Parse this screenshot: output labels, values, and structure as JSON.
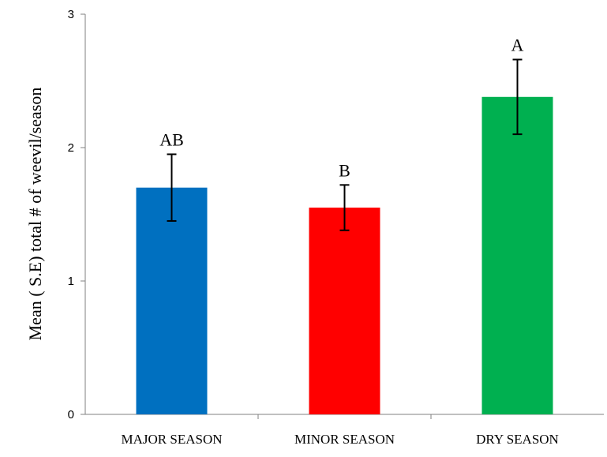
{
  "chart_data": {
    "type": "bar",
    "categories": [
      "MAJOR SEASON",
      "MINOR SEASON",
      "DRY SEASON"
    ],
    "values": [
      1.7,
      1.55,
      2.38
    ],
    "error_low": [
      1.45,
      1.38,
      2.1
    ],
    "error_high": [
      1.95,
      1.72,
      2.66
    ],
    "significance_letters": [
      "AB",
      "B",
      "A"
    ],
    "colors": [
      "#0070C0",
      "#FF0000",
      "#00B050"
    ],
    "title": "",
    "xlabel": "",
    "ylabel": "Mean (  S.E) total # of weevil/season",
    "ylim": [
      0,
      3
    ],
    "yticks": [
      "0",
      "1",
      "2",
      "3"
    ],
    "grid": false,
    "legend": "none"
  }
}
